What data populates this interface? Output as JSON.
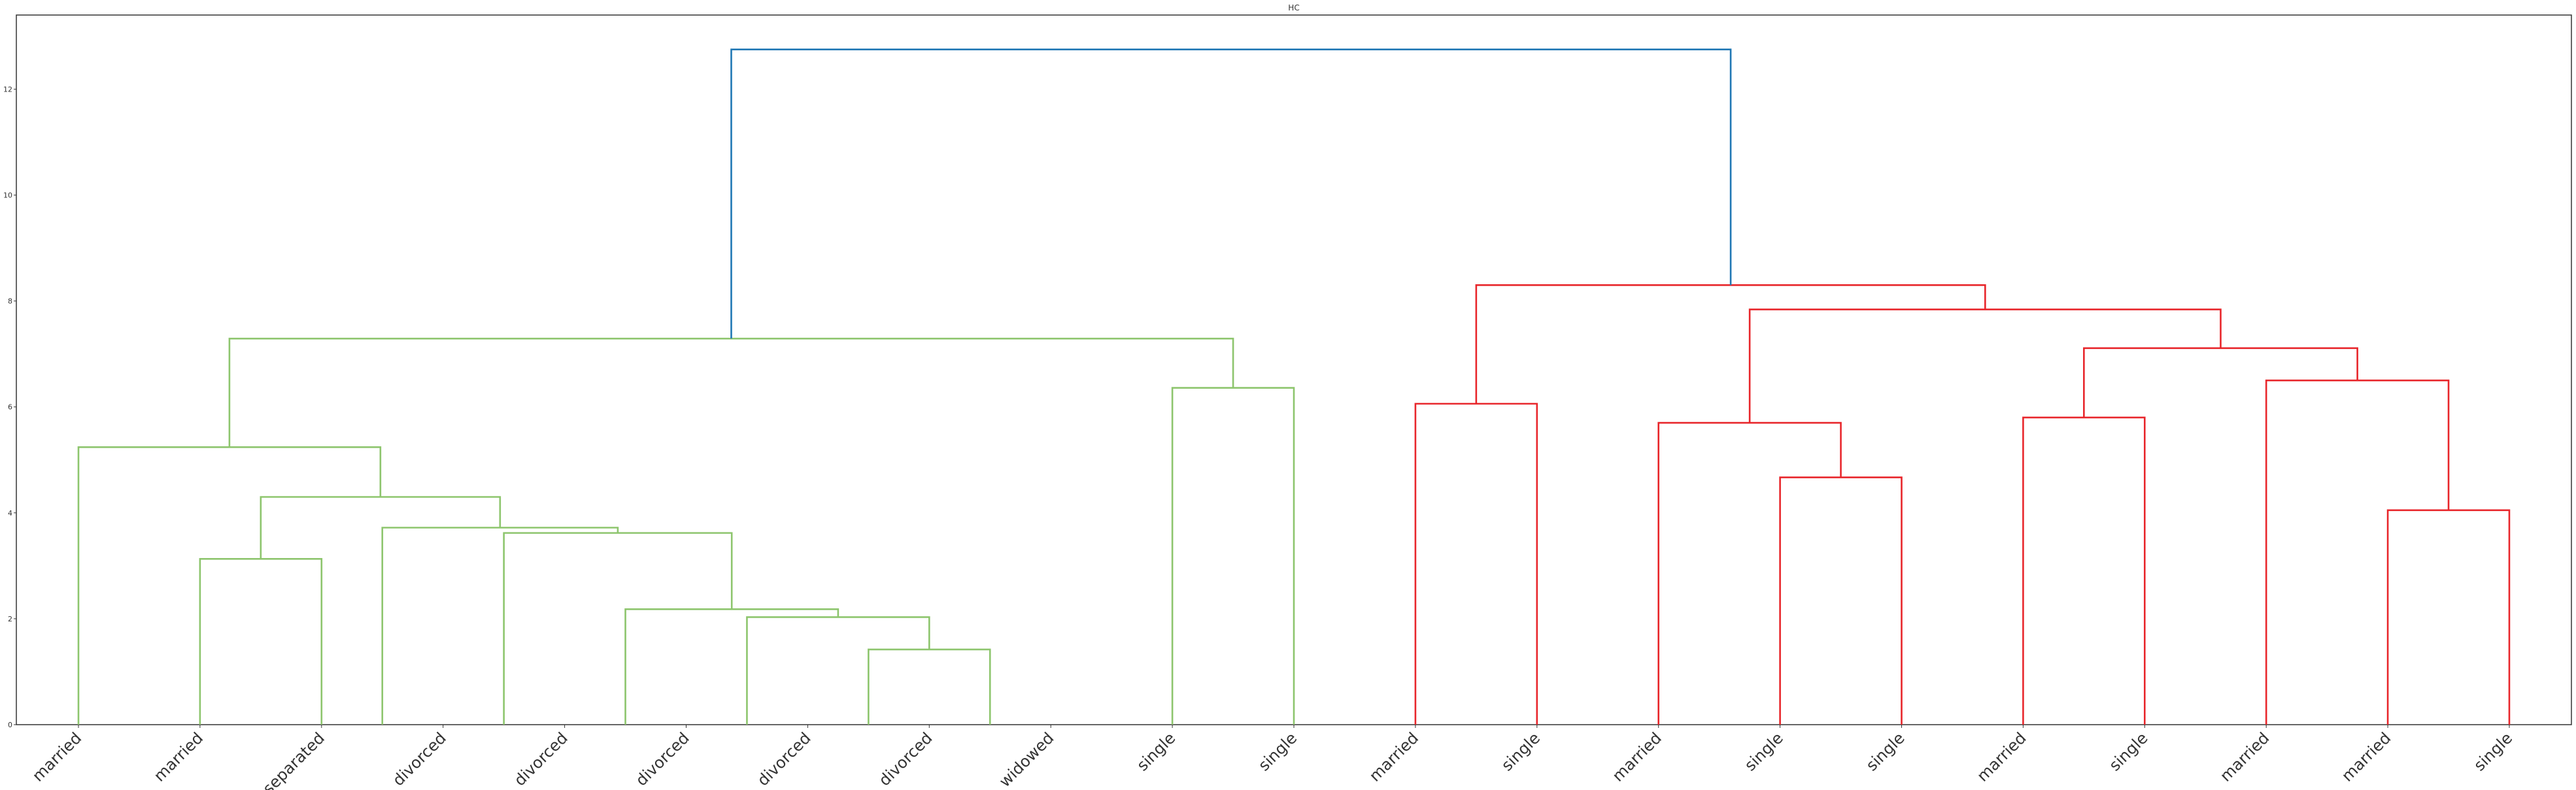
{
  "chart_data": {
    "type": "dendrogram",
    "title": "HC",
    "xlabel": "",
    "ylabel": "",
    "ylim": [
      0,
      13.4
    ],
    "yticks": [
      0,
      2,
      4,
      6,
      8,
      10,
      12
    ],
    "grid": false,
    "colors": {
      "cluster_1": "#8dc56d",
      "cluster_2": "#e8262b",
      "above_threshold": "#1f77b4",
      "axes": "#333333"
    },
    "leaves": [
      "married",
      "married",
      "separated",
      "divorced",
      "divorced",
      "divorced",
      "divorced",
      "divorced",
      "widowed",
      "single",
      "single",
      "married",
      "single",
      "married",
      "single",
      "single",
      "married",
      "single",
      "married",
      "married",
      "single"
    ],
    "links": [
      {
        "x": [
          6.5,
          6.5,
          7.5,
          7.5
        ],
        "y": [
          0,
          1.42,
          1.42,
          0
        ],
        "color": "cluster_1"
      },
      {
        "x": [
          5.5,
          5.5,
          7.0,
          7.0
        ],
        "y": [
          0,
          2.03,
          2.03,
          1.42
        ],
        "color": "cluster_1"
      },
      {
        "x": [
          4.5,
          4.5,
          6.25,
          6.25
        ],
        "y": [
          0,
          2.18,
          2.18,
          2.03
        ],
        "color": "cluster_1"
      },
      {
        "x": [
          3.5,
          3.5,
          5.375,
          5.375
        ],
        "y": [
          0,
          3.62,
          3.62,
          2.18
        ],
        "color": "cluster_1"
      },
      {
        "x": [
          2.5,
          2.5,
          4.4375,
          4.4375
        ],
        "y": [
          0,
          3.72,
          3.72,
          3.62
        ],
        "color": "cluster_1"
      },
      {
        "x": [
          1.0,
          1.0,
          2.0,
          2.0
        ],
        "y": [
          0,
          3.13,
          3.13,
          0
        ],
        "color": "cluster_1"
      },
      {
        "x": [
          1.5,
          1.5,
          3.46875,
          3.46875
        ],
        "y": [
          3.13,
          4.3,
          4.3,
          3.72
        ],
        "color": "cluster_1"
      },
      {
        "x": [
          0.0,
          0.0,
          2.484375,
          2.484375
        ],
        "y": [
          0,
          5.24,
          5.24,
          4.3
        ],
        "color": "cluster_1"
      },
      {
        "x": [
          9.0,
          9.0,
          10.0,
          10.0
        ],
        "y": [
          0,
          6.36,
          6.36,
          0
        ],
        "color": "cluster_1"
      },
      {
        "x": [
          1.2421875,
          1.2421875,
          9.5,
          9.5
        ],
        "y": [
          5.24,
          7.29,
          7.29,
          6.36
        ],
        "color": "cluster_1"
      },
      {
        "x": [
          11.0,
          11.0,
          12.0,
          12.0
        ],
        "y": [
          0,
          6.06,
          6.06,
          0
        ],
        "color": "cluster_2"
      },
      {
        "x": [
          14.0,
          14.0,
          15.0,
          15.0
        ],
        "y": [
          0,
          4.67,
          4.67,
          0
        ],
        "color": "cluster_2"
      },
      {
        "x": [
          13.0,
          13.0,
          14.5,
          14.5
        ],
        "y": [
          0,
          5.7,
          5.7,
          4.67
        ],
        "color": "cluster_2"
      },
      {
        "x": [
          16.0,
          16.0,
          17.0,
          17.0
        ],
        "y": [
          0,
          5.8,
          5.8,
          0
        ],
        "color": "cluster_2"
      },
      {
        "x": [
          19.0,
          19.0,
          20.0,
          20.0
        ],
        "y": [
          0,
          4.05,
          4.05,
          0
        ],
        "color": "cluster_2"
      },
      {
        "x": [
          18.0,
          18.0,
          19.5,
          19.5
        ],
        "y": [
          0,
          6.5,
          6.5,
          4.05
        ],
        "color": "cluster_2"
      },
      {
        "x": [
          16.5,
          16.5,
          18.75,
          18.75
        ],
        "y": [
          5.8,
          7.11,
          7.11,
          6.5
        ],
        "color": "cluster_2"
      },
      {
        "x": [
          13.75,
          13.75,
          17.625,
          17.625
        ],
        "y": [
          5.7,
          7.84,
          7.84,
          7.11
        ],
        "color": "cluster_2"
      },
      {
        "x": [
          11.5,
          11.5,
          15.6875,
          15.6875
        ],
        "y": [
          6.06,
          8.3,
          8.3,
          7.84
        ],
        "color": "cluster_2"
      },
      {
        "x": [
          5.37109375,
          5.37109375,
          13.59375,
          13.59375
        ],
        "y": [
          7.29,
          12.75,
          12.75,
          8.3
        ],
        "color": "above_threshold"
      }
    ]
  }
}
